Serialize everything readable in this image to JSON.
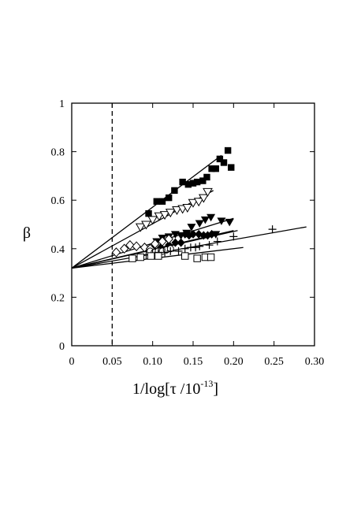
{
  "chart_data": {
    "type": "scatter",
    "xlabel_parts": {
      "main": "1/log[τ /10",
      "exponent": "-13",
      "close": "]"
    },
    "ylabel": "β",
    "xlim": [
      0,
      0.3
    ],
    "ylim": [
      0,
      1
    ],
    "x_ticks": [
      0,
      0.05,
      0.1,
      0.15,
      0.2,
      0.25,
      0.3
    ],
    "x_tick_labels": [
      "0",
      "0.05",
      "0.10",
      "0.15",
      "0.20",
      "0.25",
      "0.30"
    ],
    "y_ticks": [
      0,
      0.2,
      0.4,
      0.6,
      0.8,
      1
    ],
    "y_tick_labels": [
      "0",
      "0.2",
      "0.4",
      "0.6",
      "0.8",
      "1"
    ],
    "grid": false,
    "reference_line": {
      "style": "dashed",
      "x": 0.05
    },
    "series": [
      {
        "marker": "filled-square",
        "points": [
          [
            0.095,
            0.545
          ],
          [
            0.105,
            0.595
          ],
          [
            0.112,
            0.595
          ],
          [
            0.12,
            0.61
          ],
          [
            0.127,
            0.64
          ],
          [
            0.137,
            0.675
          ],
          [
            0.144,
            0.665
          ],
          [
            0.15,
            0.67
          ],
          [
            0.155,
            0.675
          ],
          [
            0.162,
            0.68
          ],
          [
            0.167,
            0.695
          ],
          [
            0.173,
            0.73
          ],
          [
            0.178,
            0.73
          ],
          [
            0.183,
            0.77
          ],
          [
            0.188,
            0.755
          ],
          [
            0.193,
            0.805
          ],
          [
            0.197,
            0.735
          ]
        ],
        "fit": [
          [
            0,
            0.32
          ],
          [
            0.185,
            0.785
          ]
        ]
      },
      {
        "marker": "open-down-triangle",
        "points": [
          [
            0.085,
            0.49
          ],
          [
            0.092,
            0.5
          ],
          [
            0.1,
            0.52
          ],
          [
            0.108,
            0.535
          ],
          [
            0.115,
            0.54
          ],
          [
            0.122,
            0.55
          ],
          [
            0.13,
            0.56
          ],
          [
            0.137,
            0.565
          ],
          [
            0.143,
            0.57
          ],
          [
            0.15,
            0.59
          ],
          [
            0.157,
            0.595
          ],
          [
            0.163,
            0.61
          ],
          [
            0.168,
            0.635
          ]
        ],
        "fit": [
          [
            0,
            0.32
          ],
          [
            0.175,
            0.64
          ]
        ]
      },
      {
        "marker": "filled-down-triangle",
        "points": [
          [
            0.1,
            0.4
          ],
          [
            0.105,
            0.43
          ],
          [
            0.112,
            0.445
          ],
          [
            0.12,
            0.45
          ],
          [
            0.128,
            0.46
          ],
          [
            0.135,
            0.455
          ],
          [
            0.142,
            0.465
          ],
          [
            0.148,
            0.49
          ],
          [
            0.158,
            0.505
          ],
          [
            0.165,
            0.52
          ],
          [
            0.172,
            0.53
          ],
          [
            0.178,
            0.46
          ],
          [
            0.185,
            0.515
          ],
          [
            0.195,
            0.51
          ]
        ],
        "fit": [
          [
            0,
            0.32
          ],
          [
            0.2,
            0.525
          ]
        ]
      },
      {
        "marker": "filled-diamond",
        "points": [
          [
            0.11,
            0.405
          ],
          [
            0.12,
            0.415
          ],
          [
            0.128,
            0.425
          ],
          [
            0.135,
            0.425
          ],
          [
            0.14,
            0.46
          ],
          [
            0.145,
            0.455
          ],
          [
            0.15,
            0.46
          ],
          [
            0.157,
            0.46
          ],
          [
            0.163,
            0.455
          ],
          [
            0.168,
            0.455
          ],
          [
            0.173,
            0.46
          ]
        ],
        "fit": [
          [
            0,
            0.32
          ],
          [
            0.205,
            0.475
          ]
        ]
      },
      {
        "marker": "open-diamond",
        "points": [
          [
            0.055,
            0.385
          ],
          [
            0.065,
            0.4
          ],
          [
            0.072,
            0.415
          ],
          [
            0.08,
            0.41
          ],
          [
            0.09,
            0.405
          ],
          [
            0.097,
            0.4
          ],
          [
            0.103,
            0.42
          ],
          [
            0.112,
            0.43
          ],
          [
            0.12,
            0.44
          ]
        ],
        "fit": [
          [
            0,
            0.32
          ],
          [
            0.2,
            0.475
          ]
        ]
      },
      {
        "marker": "open-circle",
        "points": [
          [
            0.097,
            0.39
          ],
          [
            0.102,
            0.385
          ],
          [
            0.107,
            0.39
          ],
          [
            0.112,
            0.39
          ],
          [
            0.117,
            0.395
          ],
          [
            0.122,
            0.4
          ]
        ]
      },
      {
        "marker": "plus",
        "points": [
          [
            0.092,
            0.375
          ],
          [
            0.1,
            0.38
          ],
          [
            0.107,
            0.385
          ],
          [
            0.115,
            0.385
          ],
          [
            0.122,
            0.39
          ],
          [
            0.132,
            0.39
          ],
          [
            0.14,
            0.4
          ],
          [
            0.147,
            0.405
          ],
          [
            0.153,
            0.405
          ],
          [
            0.158,
            0.41
          ],
          [
            0.17,
            0.415
          ],
          [
            0.18,
            0.43
          ],
          [
            0.2,
            0.45
          ],
          [
            0.248,
            0.48
          ]
        ],
        "fit": [
          [
            0,
            0.32
          ],
          [
            0.29,
            0.49
          ]
        ]
      },
      {
        "marker": "open-square",
        "points": [
          [
            0.075,
            0.36
          ],
          [
            0.085,
            0.365
          ],
          [
            0.098,
            0.37
          ],
          [
            0.107,
            0.37
          ],
          [
            0.14,
            0.37
          ],
          [
            0.155,
            0.36
          ],
          [
            0.165,
            0.365
          ],
          [
            0.172,
            0.365
          ]
        ],
        "fit": [
          [
            0,
            0.32
          ],
          [
            0.212,
            0.405
          ]
        ]
      }
    ]
  }
}
